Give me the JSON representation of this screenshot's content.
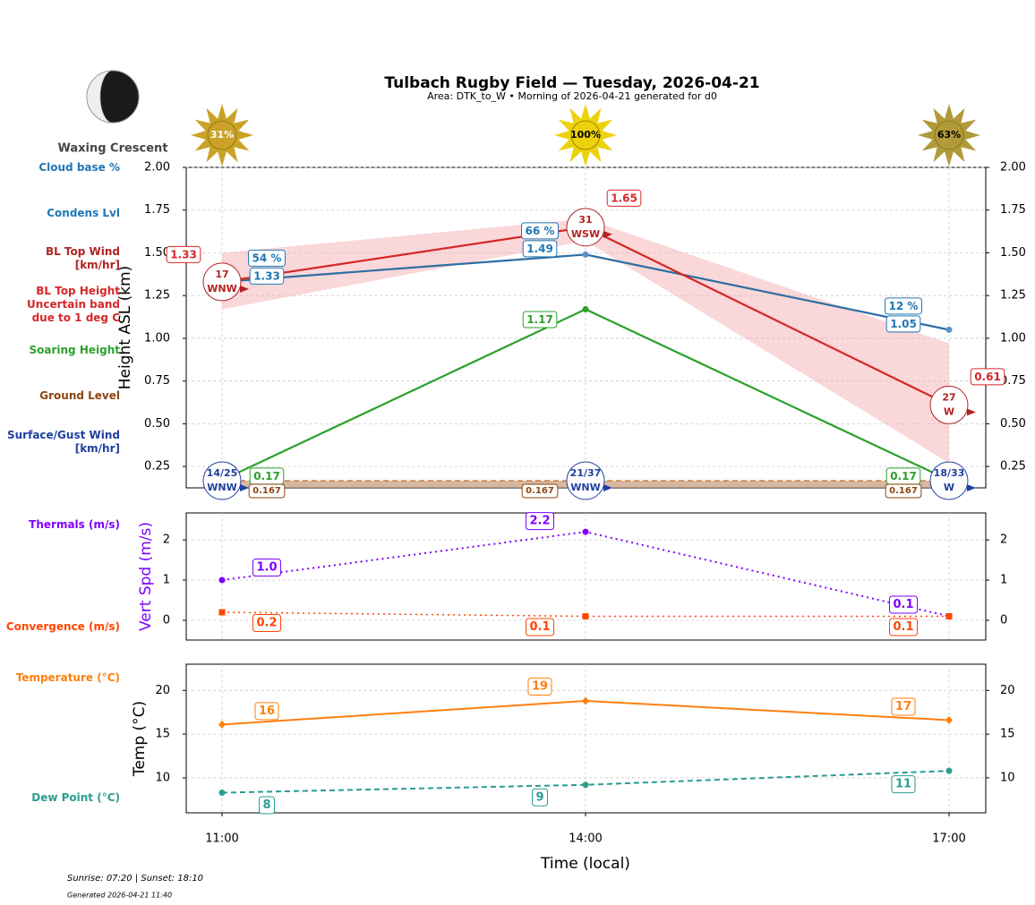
{
  "title": "Tulbach Rugby Field — Tuesday, 2026-04-21",
  "subtitle": "Area: DTK_to_W • Morning of 2026-04-21 generated for d0",
  "moon_phase": "Waxing Crescent",
  "sun": {
    "values": [
      31,
      100,
      63
    ],
    "value_labels": [
      "31%",
      "100%",
      "63%"
    ],
    "colors": [
      "#c9a227",
      "#ecd20a",
      "#b19a3a"
    ]
  },
  "footer": {
    "sun_times": "Sunrise: 07:20 | Sunset: 18:10",
    "generated": "Generated 2026-04-21 11:40"
  },
  "chart_data": [
    {
      "type": "line",
      "ylabel": "Height ASL (km)",
      "ylim": [
        0.125,
        2.0
      ],
      "yticks": [
        0.25,
        {
          "value": 0.5,
          "label": "0.50"
        },
        {
          "value": 0.75,
          "label": "0.75"
        },
        {
          "value": 1.0,
          "label": "1.00"
        },
        1.25,
        {
          "value": 1.5,
          "label": "1.50"
        },
        1.75,
        {
          "value": 2.0,
          "label": "2.00"
        }
      ],
      "grid": true,
      "series": [
        {
          "name": "Cloud base %",
          "color": "#1f77b4",
          "values": [
            54,
            66,
            12
          ],
          "value_labels": [
            "54 %",
            "66 %",
            "12 %"
          ]
        },
        {
          "name": "Condens Lvl",
          "color": "#2e6da4",
          "values": [
            1.33,
            1.49,
            1.05
          ]
        },
        {
          "name": "BL Top Wind [km/hr]",
          "color": "#b22222",
          "values": [
            17,
            31,
            27
          ],
          "directions": [
            "WNW",
            "WSW",
            "W"
          ]
        },
        {
          "name": "BL Top Height",
          "color": "#d62728",
          "values": [
            1.33,
            1.65,
            0.61
          ],
          "band": {
            "name": "Uncertain band due to 1 deg C",
            "color": "#f4a6aa",
            "lower": [
              1.17,
              1.57,
              0.27
            ],
            "upper": [
              1.5,
              1.7,
              0.97
            ]
          }
        },
        {
          "name": "Soaring Height",
          "color": "#2ca02c",
          "values": [
            0.17,
            1.17,
            0.17
          ]
        },
        {
          "name": "Ground Level",
          "color": "#8b4513",
          "values": [
            0.167,
            0.167,
            0.167
          ]
        },
        {
          "name": "Surface/Gust Wind [km/hr]",
          "color": "#1f3fa0",
          "values": [
            14,
            21,
            18
          ],
          "gust": [
            25,
            37,
            33
          ],
          "value_labels": [
            "14/25",
            "21/37",
            "18/33"
          ],
          "directions": [
            "WNW",
            "WNW",
            "W"
          ]
        }
      ]
    },
    {
      "type": "line",
      "ylabel": "Vert Spd (m/s)",
      "ylabel_color": "#7f00ff",
      "ylim": [
        -0.49,
        2.67
      ],
      "yticks": [
        0,
        1,
        2
      ],
      "grid": true,
      "series": [
        {
          "name": "Thermals (m/s)",
          "color": "#7f00ff",
          "values": [
            1.0,
            2.2,
            0.1
          ],
          "value_labels": [
            "1.0",
            "2.2",
            "0.1"
          ],
          "style": "dotted",
          "marker": "circle"
        },
        {
          "name": "Convergence (m/s)",
          "color": "#ff4500",
          "values": [
            0.2,
            0.1,
            0.1
          ],
          "style": "dotted",
          "marker": "square"
        }
      ]
    },
    {
      "type": "line",
      "ylabel": "Temp (°C)",
      "ylim": [
        6.0,
        23.0
      ],
      "yticks": [
        10,
        15,
        20
      ],
      "grid": true,
      "xlabel": "Time (local)",
      "categories": [
        "11:00",
        "14:00",
        "17:00"
      ],
      "series": [
        {
          "name": "Temperature (°C)",
          "color": "#ff7f0e",
          "values": [
            16.1,
            18.8,
            16.6
          ],
          "value_labels": [
            "16",
            "19",
            "17"
          ],
          "style": "solid",
          "marker": "diamond"
        },
        {
          "name": "Dew Point (°C)",
          "color": "#2a9d8f",
          "values": [
            8.3,
            9.2,
            10.8
          ],
          "value_labels": [
            "8",
            "9",
            "11"
          ],
          "style": "dashed",
          "marker": "circle"
        }
      ]
    }
  ]
}
